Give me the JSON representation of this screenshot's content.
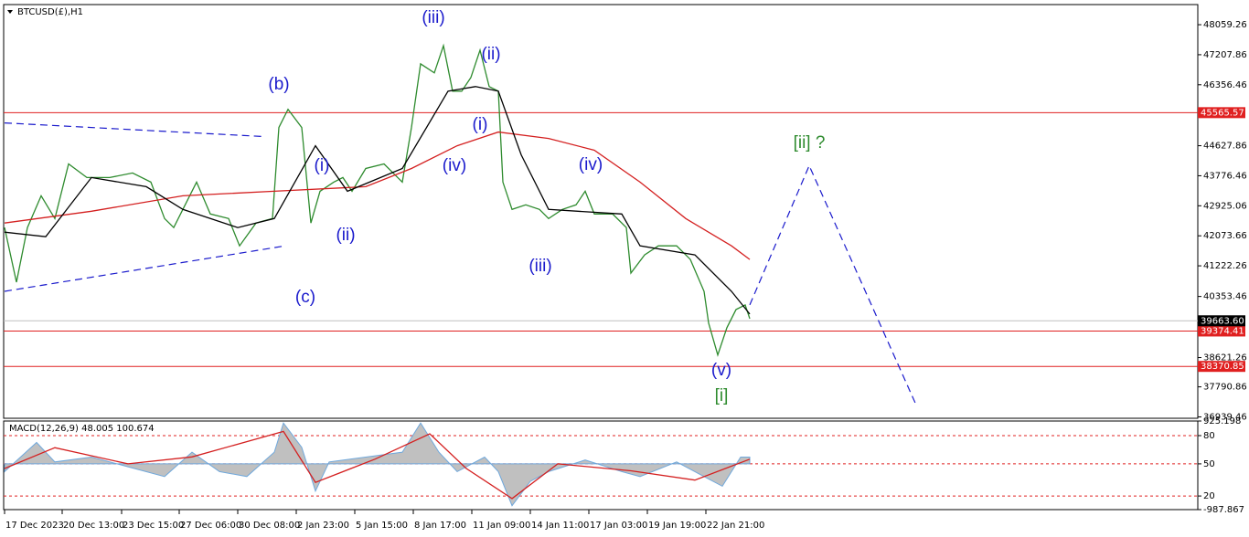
{
  "chart_data": [
    {
      "type": "line",
      "title": "BTCUSD(£),H1",
      "xlim": [
        0,
        130.6
      ],
      "ylim": [
        36900,
        48630
      ],
      "yticks": [
        48059.26,
        47207.86,
        46356.46,
        44627.86,
        43776.46,
        42925.06,
        42073.66,
        41222.26,
        40353.46,
        38621.26,
        37790.86,
        36939.46
      ],
      "xticks": [
        {
          "value": 0.1,
          "label": "17 Dec 2023"
        },
        {
          "value": 6.4,
          "label": "20 Dec 13:00"
        },
        {
          "value": 12.9,
          "label": "23 Dec 15:00"
        },
        {
          "value": 19.2,
          "label": "27 Dec 06:00"
        },
        {
          "value": 25.6,
          "label": "30 Dec 08:00"
        },
        {
          "value": 32,
          "label": "2 Jan 23:00"
        },
        {
          "value": 38.4,
          "label": "5 Jan 15:00"
        },
        {
          "value": 44.8,
          "label": "8 Jan 17:00"
        },
        {
          "value": 51.2,
          "label": "11 Jan 09:00"
        },
        {
          "value": 57.6,
          "label": "14 Jan 11:00"
        },
        {
          "value": 64,
          "label": "17 Jan 03:00"
        },
        {
          "value": 70.4,
          "label": "19 Jan 19:00"
        },
        {
          "value": 76.8,
          "label": "22 Jan 21:00"
        }
      ],
      "hlines": [
        45565.57,
        39374.41,
        38370.85
      ],
      "hline_color": "#e02020",
      "last_price": {
        "value": 39663.6,
        "label": "39663.60"
      },
      "series": [
        {
          "color": "#2e8b2e",
          "x": [
            0.1,
            1.4,
            2.6,
            4.1,
            5.6,
            7.1,
            9.1,
            11.6,
            14.1,
            16.1,
            17.6,
            18.6,
            20.1,
            21.1,
            22.6,
            24.6,
            25.8,
            27.6,
            29.4,
            30.1,
            31.1,
            32.6,
            33.6,
            34.6,
            36.1,
            37.1,
            38.1,
            39.6,
            41.6,
            43.6,
            44.6,
            45.6,
            47.1,
            48.1,
            49.1,
            50.1,
            51.1,
            52.1,
            53.1,
            54.1,
            54.6,
            55.6,
            57.1,
            58.6,
            59.6,
            61.1,
            62.6,
            63.6,
            64.6,
            66.6,
            68.1,
            68.6,
            70.1,
            71.6,
            73.6,
            75.1,
            76.6,
            77.1,
            78.1,
            79.1,
            80.1,
            81.1,
            81.6
          ],
          "values": [
            42306,
            40758,
            42306,
            43209,
            42564,
            44112,
            43725,
            43725,
            43854,
            43596,
            42564,
            42306,
            43080,
            43596,
            42693,
            42564,
            41790,
            42435,
            42564,
            45144,
            45660,
            45144,
            42435,
            43338,
            43596,
            43725,
            43338,
            43983,
            44112,
            43596,
            45144,
            46950,
            46692,
            47466,
            46176,
            46176,
            46563,
            47337,
            46305,
            46176,
            43596,
            42822,
            42951,
            42822,
            42564,
            42822,
            42951,
            43338,
            42693,
            42693,
            42306,
            41016,
            41532,
            41790,
            41790,
            41403,
            40500,
            39597,
            38694,
            39468,
            39984,
            40113,
            39726
          ]
        },
        {
          "color": "#d42020",
          "x": [
            0.1,
            9.6,
            19.6,
            29.6,
            39.6,
            44.6,
            49.6,
            54.1,
            59.6,
            64.6,
            69.6,
            74.6,
            79.6,
            81.6
          ],
          "values": [
            42435,
            42770,
            43209,
            43338,
            43467,
            43983,
            44628,
            45015,
            44834,
            44499,
            43596,
            42564,
            41790,
            41403
          ]
        },
        {
          "color": "#000000",
          "x": [
            0.1,
            4.6,
            9.6,
            15.6,
            19.6,
            25.6,
            29.6,
            34.1,
            37.6,
            43.6,
            48.6,
            51.6,
            54.1,
            56.6,
            59.6,
            67.6,
            69.6,
            75.6,
            79.6,
            81.6
          ],
          "values": [
            42177,
            42048,
            43725,
            43467,
            42822,
            42306,
            42564,
            44628,
            43338,
            43983,
            46176,
            46305,
            46176,
            44370,
            42822,
            42693,
            41790,
            41532,
            40500,
            39855
          ]
        },
        {
          "color": "#1a1acc",
          "dashed": true,
          "x": [
            0.1,
            28.6
          ],
          "values": [
            45273,
            44886
          ]
        },
        {
          "color": "#1a1acc",
          "dashed": true,
          "x": [
            0.1,
            30.8
          ],
          "values": [
            40500,
            41790
          ]
        },
        {
          "color": "#1a1acc",
          "dashed": true,
          "x": [
            81.6,
            88.1,
            99.8
          ],
          "values": [
            40113,
            44061,
            37276
          ]
        }
      ],
      "annotations": [
        {
          "text": "(b)",
          "color": "#1a1acc"
        },
        {
          "text": "(c)",
          "color": "#1a1acc"
        },
        {
          "text": "(i)",
          "color": "#1a1acc"
        },
        {
          "text": "(ii)",
          "color": "#1a1acc"
        },
        {
          "text": "(iii)",
          "color": "#1a1acc"
        },
        {
          "text": "(iv)",
          "color": "#1a1acc"
        },
        {
          "text": "(i)",
          "color": "#1a1acc"
        },
        {
          "text": "(ii)",
          "color": "#1a1acc"
        },
        {
          "text": "(iii)",
          "color": "#1a1acc"
        },
        {
          "text": "(iv)",
          "color": "#1a1acc"
        },
        {
          "text": "(v)",
          "color": "#1a1acc"
        },
        {
          "text": "[i]",
          "color": "#2e8b2e"
        },
        {
          "text": "[ii] ?",
          "color": "#2e8b2e"
        }
      ]
    },
    {
      "type": "macd",
      "title": "MACD(12,26,9) 48.005 100.674",
      "xlim": [
        0,
        130.6
      ],
      "ylim": [
        -987.867,
        925.198
      ],
      "yticks": [
        925.198,
        {
          "value": 610,
          "label": "80"
        },
        {
          "value": 0,
          "label": "50"
        },
        {
          "value": -694,
          "label": "20"
        },
        -987.867
      ],
      "levels": [
        610,
        0,
        -694
      ],
      "series": [
        {
          "color": "#c0c0c0",
          "x": [
            0.1,
            3.6,
            5.6,
            9.6,
            13.6,
            17.6,
            20.6,
            23.6,
            26.6,
            29.6,
            30.6,
            32.6,
            34.1,
            35.6,
            39.6,
            43.6,
            45.6,
            47.6,
            49.6,
            52.6,
            54.1,
            55.6,
            57.6,
            59.6,
            63.6,
            67.6,
            69.6,
            73.6,
            76.6,
            78.6,
            80.6,
            81.6
          ],
          "values": [
            -168,
            462,
            42,
            147,
            -63,
            -273,
            252,
            -168,
            -273,
            252,
            882,
            357,
            -588,
            42,
            147,
            252,
            882,
            252,
            -168,
            147,
            -168,
            -903,
            -378,
            -168,
            84,
            -168,
            -273,
            42,
            -273,
            -483,
            147,
            147
          ]
        },
        {
          "color": "#d42020",
          "x": [
            0.1,
            5.6,
            13.6,
            20.6,
            30.6,
            34.1,
            40.6,
            46.6,
            50.6,
            55.6,
            60.6,
            68.6,
            75.6,
            81.6
          ],
          "values": [
            -100,
            350,
            0,
            150,
            700,
            -400,
            100,
            650,
            -100,
            -750,
            0,
            -150,
            -350,
            100
          ]
        }
      ]
    }
  ]
}
